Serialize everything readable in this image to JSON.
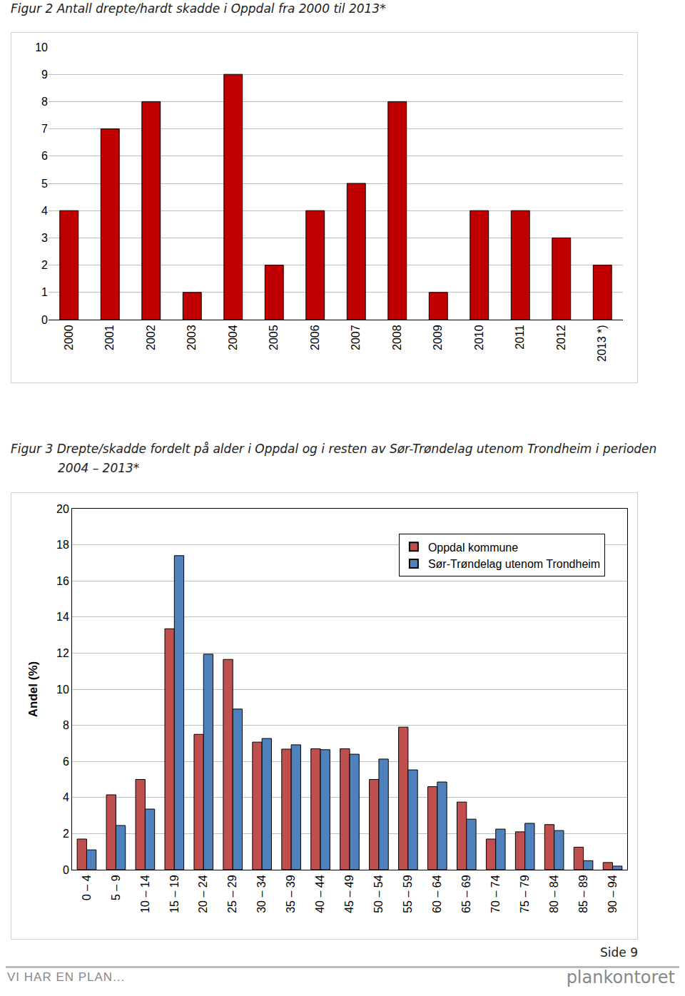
{
  "page": {
    "page_number": "Side 9",
    "footer_left": "VI HAR EN PLAN...",
    "footer_right": "plankontoret"
  },
  "chart_data": [
    {
      "type": "bar",
      "title": "Figur 2 Antall drepte/hardt skadde i Oppdal fra 2000 til 2013*",
      "categories": [
        "2000",
        "2001",
        "2002",
        "2003",
        "2004",
        "2005",
        "2006",
        "2007",
        "2008",
        "2009",
        "2010",
        "2011",
        "2012",
        "2013 *)"
      ],
      "values": [
        4,
        7,
        8,
        1,
        9,
        2,
        4,
        5,
        8,
        1,
        4,
        4,
        3,
        2
      ],
      "color": "#c00000",
      "ylim": [
        0,
        10
      ],
      "yticks": [
        0,
        1,
        2,
        3,
        4,
        5,
        6,
        7,
        8,
        9,
        10
      ],
      "grid": true
    },
    {
      "type": "bar",
      "title": "Figur 3 Drepte/skadde fordelt på alder i Oppdal og i resten av Sør-Trøndelag utenom Trondheim i perioden 2004 – 2013*",
      "y_label": "Andel (%)",
      "categories": [
        "0 – 4",
        "5 – 9",
        "10 – 14",
        "15 – 19",
        "20 – 24",
        "25 – 29",
        "30 – 34",
        "35 – 39",
        "40 – 44",
        "45 – 49",
        "50 – 54",
        "55 – 59",
        "60 – 64",
        "65 – 69",
        "70 – 74",
        "75 – 79",
        "80 – 84",
        "85 – 89",
        "90 – 94"
      ],
      "series": [
        {
          "name": "Oppdal kommune",
          "color": "#c0504d",
          "values": [
            1.7,
            4.15,
            5.0,
            13.35,
            7.5,
            11.65,
            7.07,
            6.68,
            6.7,
            6.7,
            5.0,
            7.9,
            4.6,
            3.75,
            1.7,
            2.1,
            2.5,
            1.25,
            0.4
          ]
        },
        {
          "name": "Sør-Trøndelag utenom Trondheim",
          "color": "#4f81bd",
          "values": [
            1.1,
            2.45,
            3.36,
            17.4,
            11.94,
            8.9,
            7.27,
            6.92,
            6.65,
            6.4,
            6.13,
            5.53,
            4.86,
            2.8,
            2.25,
            2.57,
            2.17,
            0.5,
            0.2
          ]
        }
      ],
      "ylim": [
        0,
        20
      ],
      "yticks": [
        0,
        2,
        4,
        6,
        8,
        10,
        12,
        14,
        16,
        18,
        20
      ],
      "grid": true,
      "legend": "top-right"
    }
  ]
}
